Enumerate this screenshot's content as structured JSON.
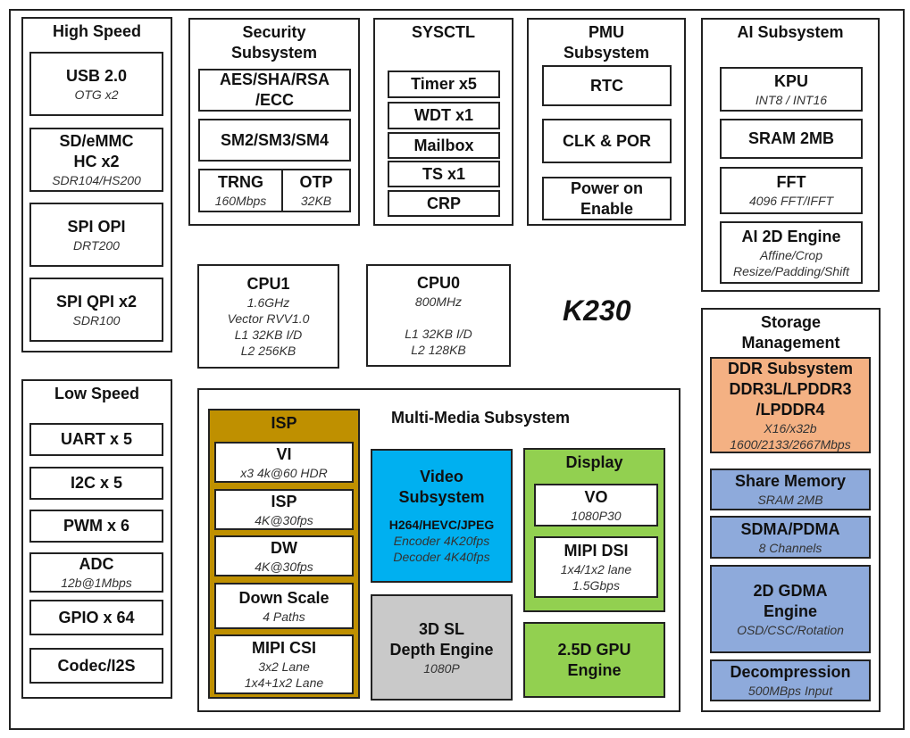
{
  "chip_name": "K230",
  "colors": {
    "isp": "#bf9000",
    "video": "#00b0f0",
    "depth": "#c9c9c9",
    "display": "#92d050",
    "ddr": "#f4b183",
    "storage": "#8eaadb",
    "line": "#222222"
  },
  "blocks": {
    "high_speed": {
      "title": [
        "High Speed"
      ],
      "sub": []
    },
    "usb": {
      "title": [
        "USB 2.0"
      ],
      "sub": [
        "OTG x2"
      ]
    },
    "sdemmc": {
      "title": [
        "SD/eMMC",
        "HC x2"
      ],
      "sub": [
        "SDR104/HS200"
      ]
    },
    "spi_opi": {
      "title": [
        "SPI OPI"
      ],
      "sub": [
        "DRT200"
      ]
    },
    "spi_qpi": {
      "title": [
        "SPI QPI x2"
      ],
      "sub": [
        "SDR100"
      ]
    },
    "low_speed": {
      "title": [
        "Low Speed"
      ],
      "sub": []
    },
    "uart": {
      "title": [
        "UART x 5"
      ],
      "sub": []
    },
    "i2c": {
      "title": [
        "I2C x 5"
      ],
      "sub": []
    },
    "pwm": {
      "title": [
        "PWM x 6"
      ],
      "sub": []
    },
    "adc": {
      "title": [
        "ADC"
      ],
      "sub": [
        "12b@1Mbps"
      ]
    },
    "gpio": {
      "title": [
        "GPIO x 64"
      ],
      "sub": []
    },
    "codec": {
      "title": [
        "Codec/I2S"
      ],
      "sub": []
    },
    "security": {
      "title": [
        "Security",
        "Subsystem"
      ],
      "sub": []
    },
    "aes": {
      "title": [
        "AES/SHA/RSA",
        "/ECC"
      ],
      "sub": []
    },
    "sm": {
      "title": [
        "SM2/SM3/SM4"
      ],
      "sub": []
    },
    "trng": {
      "title": [
        "TRNG"
      ],
      "sub": [
        "160Mbps"
      ]
    },
    "otp": {
      "title": [
        "OTP"
      ],
      "sub": [
        "32KB"
      ]
    },
    "sysctl": {
      "title": [
        "SYSCTL"
      ],
      "sub": []
    },
    "timer": {
      "title": [
        "Timer x5"
      ],
      "sub": []
    },
    "wdt": {
      "title": [
        "WDT x1"
      ],
      "sub": []
    },
    "mailbox": {
      "title": [
        "Mailbox"
      ],
      "sub": []
    },
    "ts": {
      "title": [
        "TS x1"
      ],
      "sub": []
    },
    "crp": {
      "title": [
        "CRP"
      ],
      "sub": []
    },
    "pmu": {
      "title": [
        "PMU",
        "Subsystem"
      ],
      "sub": []
    },
    "rtc": {
      "title": [
        "RTC"
      ],
      "sub": []
    },
    "clk": {
      "title": [
        "CLK & POR"
      ],
      "sub": []
    },
    "power": {
      "title": [
        "Power on",
        "Enable"
      ],
      "sub": []
    },
    "ai": {
      "title": [
        "AI Subsystem"
      ],
      "sub": []
    },
    "kpu": {
      "title": [
        "KPU"
      ],
      "sub": [
        "INT8 / INT16"
      ]
    },
    "sram": {
      "title": [
        "SRAM 2MB"
      ],
      "sub": []
    },
    "fft": {
      "title": [
        "FFT"
      ],
      "sub": [
        "4096 FFT/IFFT"
      ]
    },
    "ai2d": {
      "title": [
        "AI 2D Engine"
      ],
      "sub": [
        "Affine/Crop",
        "Resize/Padding/Shift"
      ]
    },
    "cpu1": {
      "title": [
        "CPU1"
      ],
      "sub": [
        "1.6GHz",
        "Vector RVV1.0",
        "L1 32KB I/D",
        "L2 256KB"
      ]
    },
    "cpu0": {
      "title": [
        "CPU0"
      ],
      "sub": [
        "800MHz",
        "",
        "L1 32KB I/D",
        "L2 128KB"
      ]
    },
    "storage": {
      "title": [
        "Storage",
        "Management"
      ],
      "sub": []
    },
    "ddr": {
      "title": [
        "DDR Subsystem",
        "DDR3L/LPDDR3",
        "/LPDDR4"
      ],
      "sub": [
        "X16/x32b",
        "1600/2133/2667Mbps"
      ]
    },
    "share": {
      "title": [
        "Share Memory"
      ],
      "sub": [
        "SRAM 2MB"
      ]
    },
    "sdma": {
      "title": [
        "SDMA/PDMA"
      ],
      "sub": [
        "8 Channels"
      ]
    },
    "gdma": {
      "title": [
        "2D GDMA",
        "Engine"
      ],
      "sub": [
        "OSD/CSC/Rotation"
      ]
    },
    "decomp": {
      "title": [
        "Decompression"
      ],
      "sub": [
        "500MBps  Input"
      ]
    },
    "multimedia": {
      "title": [
        "Multi-Media Subsystem"
      ],
      "sub": []
    },
    "isp_group": {
      "title": [
        "ISP"
      ],
      "sub": []
    },
    "vi": {
      "title": [
        "VI"
      ],
      "sub": [
        "x3 4k@60 HDR"
      ]
    },
    "isp": {
      "title": [
        "ISP"
      ],
      "sub": [
        "4K@30fps"
      ]
    },
    "dw": {
      "title": [
        "DW"
      ],
      "sub": [
        "4K@30fps"
      ]
    },
    "downscale": {
      "title": [
        "Down Scale"
      ],
      "sub": [
        "4 Paths"
      ]
    },
    "mipi_csi": {
      "title": [
        "MIPI CSI"
      ],
      "sub": [
        "3x2 Lane",
        "1x4+1x2 Lane"
      ]
    },
    "video": {
      "title": [
        "Video",
        "Subsystem"
      ],
      "sub": [
        "H264/HEVC/JPEG",
        "Encoder 4K20fps",
        "Decoder 4K40fps"
      ]
    },
    "depth": {
      "title": [
        "3D SL",
        "Depth Engine"
      ],
      "sub": [
        "1080P"
      ]
    },
    "display": {
      "title": [
        "Display"
      ],
      "sub": []
    },
    "vo": {
      "title": [
        "VO"
      ],
      "sub": [
        "1080P30"
      ]
    },
    "mipi_dsi": {
      "title": [
        "MIPI DSI"
      ],
      "sub": [
        "1x4/1x2 lane",
        "1.5Gbps"
      ]
    },
    "gpu": {
      "title": [
        "2.5D GPU",
        "Engine"
      ],
      "sub": []
    }
  }
}
